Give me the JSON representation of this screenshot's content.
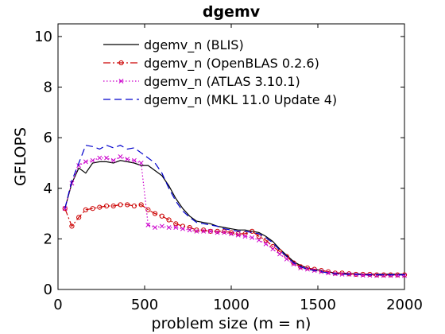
{
  "chart_data": {
    "type": "line",
    "title": "dgemv",
    "xlabel": "problem size (m = n)",
    "ylabel": "GFLOPS",
    "xlim": [
      0,
      2000
    ],
    "ylim": [
      0,
      10.5
    ],
    "xticks": [
      0,
      500,
      1000,
      1500,
      2000
    ],
    "yticks": [
      0,
      2,
      4,
      6,
      8,
      10
    ],
    "grid": false,
    "legend_position": "top",
    "x": [
      40,
      80,
      120,
      160,
      200,
      240,
      280,
      320,
      360,
      400,
      440,
      480,
      520,
      560,
      600,
      640,
      680,
      720,
      760,
      800,
      840,
      880,
      920,
      960,
      1000,
      1040,
      1080,
      1120,
      1160,
      1200,
      1240,
      1280,
      1320,
      1360,
      1400,
      1440,
      1480,
      1520,
      1560,
      1600,
      1640,
      1680,
      1720,
      1760,
      1800,
      1840,
      1880,
      1920,
      1960,
      2000
    ],
    "series": [
      {
        "name": "dgemv_n (BLIS)",
        "color": "#000000",
        "style": "solid",
        "marker": "none",
        "values": [
          3.2,
          4.2,
          4.8,
          4.6,
          5.0,
          5.05,
          5.05,
          5.0,
          5.1,
          5.05,
          5.0,
          4.9,
          4.9,
          4.7,
          4.5,
          4.1,
          3.6,
          3.2,
          2.9,
          2.7,
          2.65,
          2.6,
          2.5,
          2.45,
          2.4,
          2.35,
          2.35,
          2.3,
          2.25,
          2.1,
          1.9,
          1.6,
          1.35,
          1.1,
          0.95,
          0.85,
          0.8,
          0.75,
          0.7,
          0.65,
          0.65,
          0.63,
          0.62,
          0.61,
          0.6,
          0.6,
          0.6,
          0.6,
          0.6,
          0.6
        ]
      },
      {
        "name": "dgemv_n (OpenBLAS 0.2.6)",
        "color": "#cc0000",
        "style": "dashdot",
        "marker": "circle",
        "values": [
          3.2,
          2.5,
          2.85,
          3.15,
          3.2,
          3.25,
          3.3,
          3.3,
          3.35,
          3.35,
          3.3,
          3.35,
          3.15,
          3.0,
          2.9,
          2.75,
          2.6,
          2.5,
          2.45,
          2.35,
          2.35,
          2.3,
          2.3,
          2.3,
          2.25,
          2.2,
          2.2,
          2.3,
          2.1,
          1.95,
          1.7,
          1.5,
          1.3,
          1.05,
          0.9,
          0.85,
          0.8,
          0.75,
          0.7,
          0.65,
          0.65,
          0.62,
          0.6,
          0.6,
          0.6,
          0.58,
          0.58,
          0.58,
          0.58,
          0.58
        ]
      },
      {
        "name": "dgemv_n (ATLAS 3.10.1)",
        "color": "#cc00cc",
        "style": "dotted",
        "marker": "x",
        "values": [
          3.2,
          4.2,
          4.9,
          5.05,
          5.1,
          5.2,
          5.2,
          5.1,
          5.25,
          5.15,
          5.1,
          5.0,
          2.55,
          2.45,
          2.5,
          2.45,
          2.45,
          2.4,
          2.35,
          2.3,
          2.3,
          2.3,
          2.25,
          2.25,
          2.2,
          2.15,
          2.1,
          2.05,
          1.95,
          1.8,
          1.6,
          1.4,
          1.2,
          1.0,
          0.85,
          0.8,
          0.75,
          0.7,
          0.65,
          0.62,
          0.6,
          0.6,
          0.58,
          0.56,
          0.56,
          0.55,
          0.55,
          0.55,
          0.55,
          0.55
        ]
      },
      {
        "name": "dgemv_n (MKL 11.0 Update 4)",
        "color": "#0000cc",
        "style": "dashed",
        "marker": "none",
        "values": [
          3.2,
          4.3,
          5.0,
          5.7,
          5.65,
          5.55,
          5.7,
          5.6,
          5.7,
          5.55,
          5.6,
          5.4,
          5.2,
          5.0,
          4.6,
          4.0,
          3.5,
          3.1,
          2.85,
          2.65,
          2.6,
          2.55,
          2.5,
          2.4,
          2.35,
          2.3,
          2.3,
          2.25,
          2.2,
          2.05,
          1.85,
          1.55,
          1.3,
          1.05,
          0.9,
          0.8,
          0.75,
          0.7,
          0.65,
          0.62,
          0.6,
          0.6,
          0.6,
          0.58,
          0.58,
          0.58,
          0.58,
          0.58,
          0.58,
          0.58
        ]
      }
    ]
  }
}
